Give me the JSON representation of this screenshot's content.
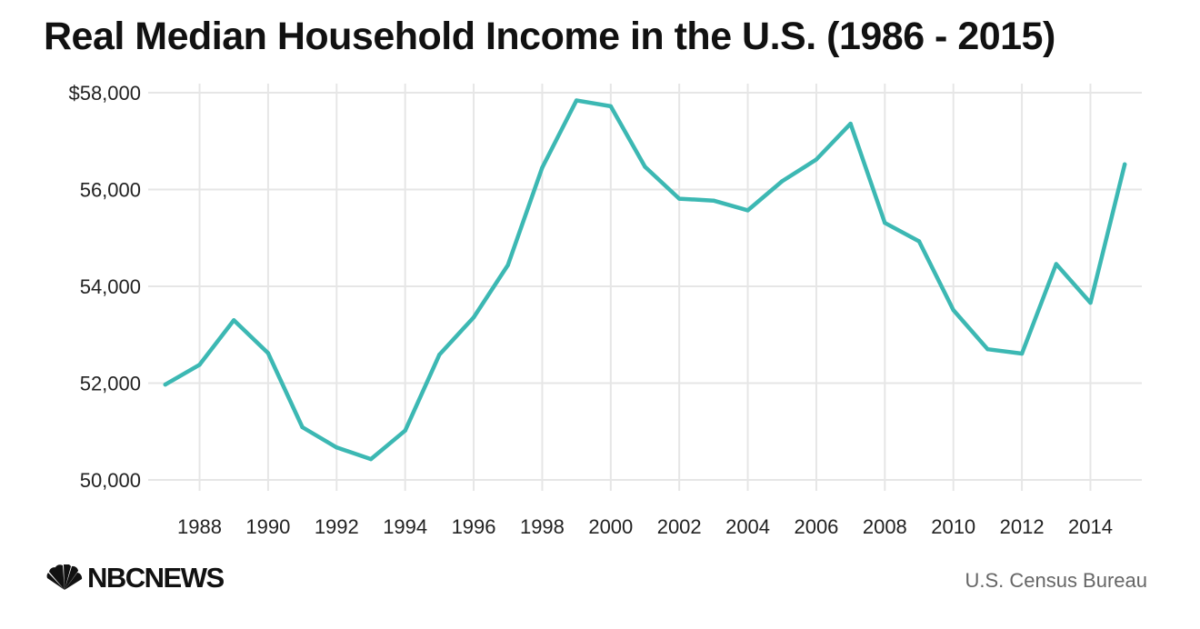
{
  "title": "Real Median Household Income in the U.S. (1986 - 2015)",
  "source": "U.S. Census Bureau",
  "logo": {
    "text": "NBCNEWS",
    "icon": "peacock-icon"
  },
  "colors": {
    "line": "#3cb8b3",
    "grid": "#e6e6e6",
    "text": "#222222"
  },
  "chart_data": {
    "type": "line",
    "title": "Real Median Household Income in the U.S. (1986 - 2015)",
    "xlabel": "",
    "ylabel": "",
    "x": [
      1987,
      1988,
      1989,
      1990,
      1991,
      1992,
      1993,
      1994,
      1995,
      1996,
      1997,
      1998,
      1999,
      2000,
      2001,
      2002,
      2003,
      2004,
      2005,
      2006,
      2007,
      2008,
      2009,
      2010,
      2011,
      2012,
      2013,
      2014,
      2015
    ],
    "series": [
      {
        "values": [
          51970,
          52380,
          53300,
          52620,
          51090,
          50670,
          50430,
          51020,
          52590,
          53360,
          54440,
          56450,
          57840,
          57720,
          56470,
          55810,
          55770,
          55570,
          56170,
          56620,
          57360,
          55310,
          54930,
          53510,
          52700,
          52610,
          54460,
          53660,
          56520
        ]
      }
    ],
    "xlim": [
      1986.5,
      2015.5
    ],
    "ylim": [
      50000,
      58000
    ],
    "y_ticks": [
      50000,
      52000,
      54000,
      56000,
      58000
    ],
    "y_tick_labels": [
      "50,000",
      "52,000",
      "54,000",
      "56,000",
      "$58,000"
    ],
    "x_ticks": [
      1988,
      1990,
      1992,
      1994,
      1996,
      1998,
      2000,
      2002,
      2004,
      2006,
      2008,
      2010,
      2012,
      2014
    ],
    "x_tick_labels": [
      "1988",
      "1990",
      "1992",
      "1994",
      "1996",
      "1998",
      "2000",
      "2002",
      "2004",
      "2006",
      "2008",
      "2010",
      "2012",
      "2014"
    ],
    "grid": true,
    "legend": "none"
  }
}
